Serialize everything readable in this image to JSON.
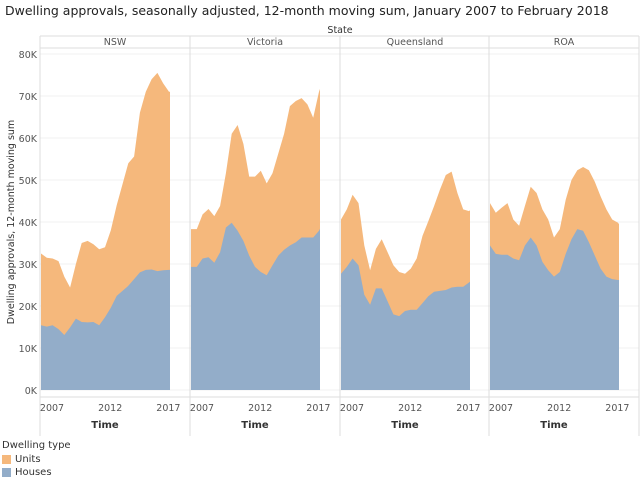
{
  "chart_data": {
    "type": "area",
    "stacked": true,
    "title": "Dwelling approvals, seasonally adjusted, 12-month moving sum,  January 2007 to February 2018",
    "facet_label": "State",
    "xlabel": "Time",
    "ylabel": "Dwelling approvals, 12-month moving sum",
    "ylim": [
      0,
      80000
    ],
    "yticks": [
      "0K",
      "10K",
      "20K",
      "30K",
      "40K",
      "50K",
      "60K",
      "70K",
      "80K"
    ],
    "xticks": [
      "2007",
      "2012",
      "2017"
    ],
    "grid": true,
    "legend": {
      "title": "Dwelling type",
      "placement": "bottom-left"
    },
    "colors": {
      "Units": "#f5b87c",
      "Houses": "#93adc9"
    },
    "x": [
      "2007-01",
      "2007-07",
      "2008-01",
      "2008-07",
      "2009-01",
      "2009-07",
      "2010-01",
      "2010-07",
      "2011-01",
      "2011-07",
      "2012-01",
      "2012-07",
      "2013-01",
      "2013-07",
      "2014-01",
      "2014-07",
      "2015-01",
      "2015-07",
      "2016-01",
      "2016-07",
      "2017-01",
      "2017-07",
      "2018-01",
      "2018-02"
    ],
    "panels": [
      {
        "name": "NSW",
        "series": [
          {
            "name": "Houses",
            "values": [
              15400,
              15100,
              15400,
              14500,
              13100,
              14900,
              17000,
              16200,
              16100,
              16200,
              15400,
              17300,
              19600,
              22400,
              23600,
              24800,
              26400,
              28000,
              28600,
              28700,
              28300,
              28500,
              28600,
              28600
            ]
          },
          {
            "name": "Units",
            "values": [
              17100,
              16400,
              15900,
              16200,
              13900,
              9500,
              13000,
              18800,
              19400,
              18500,
              18100,
              16700,
              18400,
              21600,
              25400,
              29200,
              29200,
              38000,
              42400,
              45300,
              47200,
              44500,
              42400,
              42400
            ]
          }
        ]
      },
      {
        "name": "Victoria",
        "series": [
          {
            "name": "Houses",
            "values": [
              29300,
              29300,
              31300,
              31600,
              30300,
              32800,
              38700,
              39800,
              37900,
              35500,
              32000,
              29300,
              28100,
              27300,
              29700,
              32000,
              33400,
              34400,
              35200,
              36300,
              36300,
              36300,
              37900,
              38400
            ]
          },
          {
            "name": "Units",
            "values": [
              9000,
              9000,
              10500,
              11500,
              11100,
              11000,
              12900,
              21200,
              25200,
              23100,
              18800,
              21500,
              24100,
              21900,
              21900,
              24300,
              27600,
              33200,
              33600,
              33200,
              31700,
              28500,
              33100,
              33300
            ]
          }
        ]
      },
      {
        "name": "Queensland",
        "series": [
          {
            "name": "Houses",
            "values": [
              27700,
              29300,
              31300,
              29700,
              22700,
              20300,
              24200,
              24200,
              21100,
              18000,
              17600,
              18800,
              19100,
              19100,
              20700,
              22300,
              23400,
              23600,
              23800,
              24400,
              24600,
              24600,
              25600,
              25800
            ]
          },
          {
            "name": "Units",
            "values": [
              12900,
              13700,
              15200,
              14800,
              11700,
              8200,
              9400,
              11700,
              11700,
              11700,
              10500,
              8900,
              9800,
              12200,
              16000,
              17900,
              20400,
              24100,
              27400,
              27600,
              22300,
              18400,
              17000,
              17000
            ]
          }
        ]
      },
      {
        "name": "ROA",
        "series": [
          {
            "name": "Houses",
            "values": [
              34400,
              32400,
              32200,
              32200,
              31300,
              30900,
              34400,
              36300,
              34400,
              30500,
              28500,
              27000,
              28100,
              32400,
              35900,
              38300,
              37900,
              35200,
              32000,
              28900,
              27000,
              26400,
              26200,
              26200
            ]
          },
          {
            "name": "Units",
            "values": [
              10100,
              9800,
              11200,
              12300,
              9300,
              8200,
              9400,
              12100,
              12500,
              12500,
              12100,
              9300,
              10200,
              12900,
              14100,
              14000,
              15200,
              17100,
              17600,
              17200,
              16000,
              14200,
              13600,
              13300
            ]
          }
        ]
      }
    ]
  }
}
